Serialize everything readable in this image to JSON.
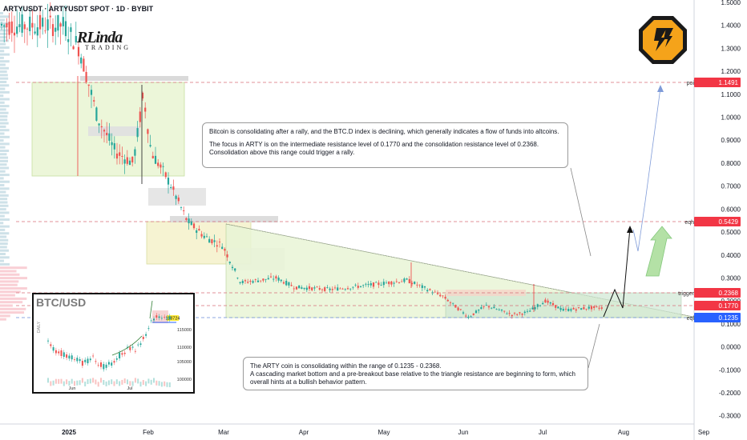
{
  "header": {
    "title": "ARTYUSDT · ARTYUSDT SPOT · 1D · BYBIT"
  },
  "logo": {
    "line1": "RLinda",
    "line2": "TRADING"
  },
  "notes": {
    "top": {
      "p1": "Bitcoin is consolidating after a rally, and the BTC.D index is declining, which generally indicates a flow of funds into altcoins.",
      "p2": "The focus in ARTY is on the intermediate resistance level of 0.1770 and the consolidation resistance level of 0.2368. Consolidation above this range could trigger a rally."
    },
    "bottom": {
      "p1": "The ARTY coin is consolidating within the range of 0.1235 - 0.2368.",
      "p2": "A cascading market bottom and a pre-breakout base relative to the triangle resistance are beginning to form, which overall hints at a bullish behavior pattern."
    }
  },
  "inset": {
    "title": "BTC/USD",
    "price_label": "118724",
    "y_ticks": [
      "115000",
      "110000",
      "105000",
      "100000"
    ],
    "x_ticks": [
      "Jun",
      "Jul"
    ],
    "side_label": "DAILY"
  },
  "colors": {
    "bull": "#26a69a",
    "bear": "#ef5350",
    "price_badge_red": "#f23645",
    "price_badge_blue": "#2962ff",
    "level_line": "#d86f7a"
  },
  "chart_data": {
    "type": "candlestick",
    "title": "ARTYUSDT · ARTYUSDT SPOT · 1D · BYBIT",
    "y_axis": {
      "ticks": [
        "1.5000",
        "1.4000",
        "1.3000",
        "1.2000",
        "1.1000",
        "1.0000",
        "0.9000",
        "0.8000",
        "0.7000",
        "0.6000",
        "0.5000",
        "0.4000",
        "0.3000",
        "0.2000",
        "0.1000",
        "0.0000",
        "-0.1000",
        "-0.2000",
        "-0.3000"
      ]
    },
    "x_axis": {
      "ticks": [
        "2025",
        "Feb",
        "Mar",
        "Apr",
        "May",
        "Jun",
        "Jul",
        "Aug",
        "Sep"
      ]
    },
    "levels": [
      {
        "name": "poi",
        "price": "1.1491",
        "color": "#f23645"
      },
      {
        "name": "eqh",
        "price": "0.5429",
        "color": "#f23645"
      },
      {
        "name": "trigger",
        "price": "0.2368",
        "color": "#f23645"
      },
      {
        "name": "",
        "price": "0.1770",
        "color": "#f23645"
      },
      {
        "name": "eql",
        "price": "0.1235",
        "color": "#2962ff"
      }
    ],
    "price_path": [
      {
        "date": "2025-01-01",
        "price": 1.4
      },
      {
        "date": "2025-01-07",
        "price": 1.3
      },
      {
        "date": "2025-01-14",
        "price": 1.0
      },
      {
        "date": "2025-01-21",
        "price": 0.85
      },
      {
        "date": "2025-01-28",
        "price": 0.8
      },
      {
        "date": "2025-02-01",
        "price": 1.1
      },
      {
        "date": "2025-02-04",
        "price": 0.85
      },
      {
        "date": "2025-02-11",
        "price": 0.72
      },
      {
        "date": "2025-02-18",
        "price": 0.55
      },
      {
        "date": "2025-02-25",
        "price": 0.48
      },
      {
        "date": "2025-03-04",
        "price": 0.44
      },
      {
        "date": "2025-03-11",
        "price": 0.28
      },
      {
        "date": "2025-03-18",
        "price": 0.29
      },
      {
        "date": "2025-03-25",
        "price": 0.3
      },
      {
        "date": "2025-04-01",
        "price": 0.26
      },
      {
        "date": "2025-04-15",
        "price": 0.25
      },
      {
        "date": "2025-05-01",
        "price": 0.27
      },
      {
        "date": "2025-05-15",
        "price": 0.29
      },
      {
        "date": "2025-05-29",
        "price": 0.22
      },
      {
        "date": "2025-06-08",
        "price": 0.13
      },
      {
        "date": "2025-06-15",
        "price": 0.18
      },
      {
        "date": "2025-06-25",
        "price": 0.14
      },
      {
        "date": "2025-07-01",
        "price": 0.15
      },
      {
        "date": "2025-07-08",
        "price": 0.2
      },
      {
        "date": "2025-07-15",
        "price": 0.16
      },
      {
        "date": "2025-07-25",
        "price": 0.17
      }
    ]
  }
}
